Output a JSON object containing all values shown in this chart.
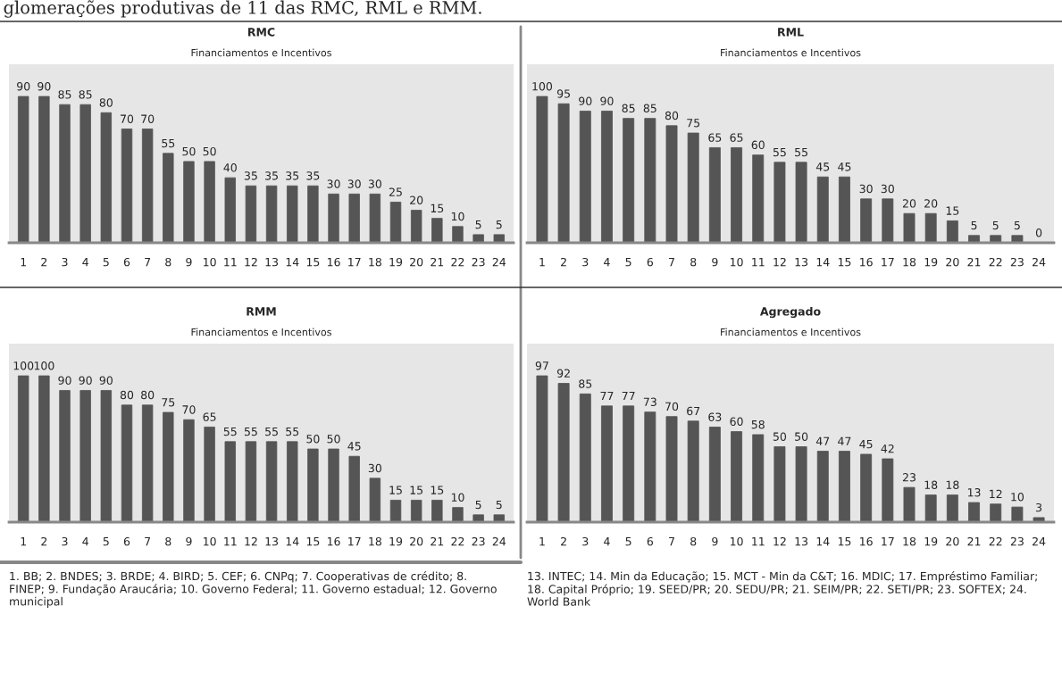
{
  "chart_data": [
    {
      "type": "bar",
      "title": "RMC",
      "subtitle": "Financiamentos e Incentivos",
      "categories": [
        "1",
        "2",
        "3",
        "4",
        "5",
        "6",
        "7",
        "8",
        "9",
        "10",
        "11",
        "12",
        "13",
        "14",
        "15",
        "16",
        "17",
        "18",
        "19",
        "20",
        "21",
        "22",
        "23",
        "24"
      ],
      "values": [
        90,
        90,
        85,
        85,
        80,
        70,
        70,
        55,
        50,
        50,
        40,
        35,
        35,
        35,
        35,
        30,
        30,
        30,
        25,
        20,
        15,
        10,
        5,
        5
      ],
      "color": "#555555",
      "data_labels": true,
      "annotations": [
        "glomerações produtivas de 11 das RMC, RML e RMM."
      ]
    },
    {
      "type": "bar",
      "title": "RML",
      "subtitle": "Financiamentos e Incentivos",
      "categories": [
        "1",
        "2",
        "3",
        "4",
        "5",
        "6",
        "7",
        "8",
        "9",
        "10",
        "11",
        "12",
        "13",
        "14",
        "15",
        "16",
        "17",
        "18",
        "19",
        "20",
        "21",
        "22",
        "23",
        "24"
      ],
      "values": [
        100,
        95,
        90,
        90,
        85,
        85,
        80,
        75,
        65,
        65,
        60,
        55,
        55,
        45,
        45,
        30,
        30,
        20,
        20,
        15,
        5,
        5,
        5,
        0
      ],
      "color": "#555555",
      "data_labels": true
    },
    {
      "type": "bar",
      "title": "RMM",
      "subtitle": "Financiamentos e Incentivos",
      "categories": [
        "1",
        "2",
        "3",
        "4",
        "5",
        "6",
        "7",
        "8",
        "9",
        "10",
        "11",
        "12",
        "13",
        "14",
        "15",
        "16",
        "17",
        "18",
        "19",
        "20",
        "21",
        "22",
        "23",
        "24"
      ],
      "values": [
        100,
        100,
        90,
        90,
        90,
        80,
        80,
        75,
        70,
        65,
        55,
        55,
        55,
        55,
        50,
        50,
        45,
        30,
        15,
        15,
        15,
        10,
        5,
        5
      ],
      "color": "#555555",
      "data_labels": true,
      "annotations": [
        "1. BB; 2. BNDES; 3. BRDE; 4. BIRD; 5. CEF; 6. CNPq; 7. Cooperativas de crédito; 8. FINEP; 9. Fundação Araucária; 10. Governo Federal; 11. Governo estadual; 12. Governo municipal"
      ]
    },
    {
      "type": "bar",
      "title": "Agregado",
      "subtitle": "Financiamentos e Incentivos",
      "categories": [
        "1",
        "2",
        "3",
        "4",
        "5",
        "6",
        "7",
        "8",
        "9",
        "10",
        "11",
        "12",
        "13",
        "14",
        "15",
        "16",
        "17",
        "18",
        "19",
        "20",
        "21",
        "22",
        "23",
        "24"
      ],
      "values": [
        97,
        92,
        85,
        77,
        77,
        73,
        70,
        67,
        63,
        60,
        58,
        50,
        50,
        47,
        47,
        45,
        42,
        23,
        18,
        18,
        13,
        12,
        10,
        3
      ],
      "color": "#555555",
      "data_labels": true,
      "annotations": [
        "13. INTEC; 14. Min da Educação; 15. MCT - Min da C&T; 16. MDIC; 17. Empréstimo Familiar; 18. Capital Próprio; 19. SEED/PR; 20. SEDU/PR; 21. SEIM/PR; 22. SETI/PR; 23. SOFTEX; 24. World Bank"
      ]
    }
  ]
}
